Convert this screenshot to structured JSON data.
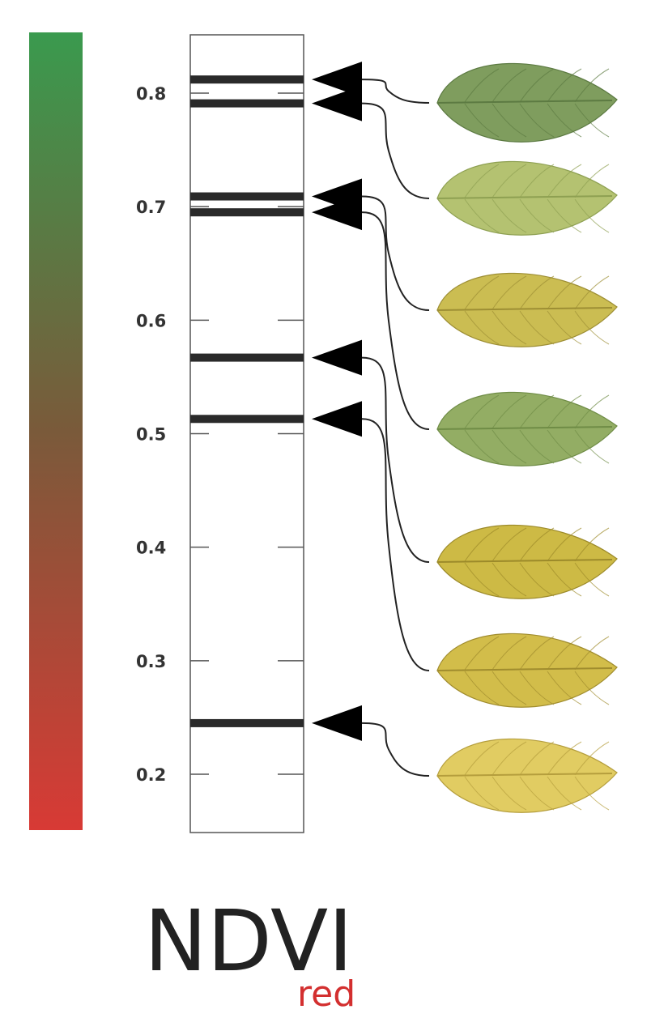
{
  "title": {
    "main": "NDVI",
    "subscript": "red",
    "subscript_color": "#d32f2f"
  },
  "colors": {
    "high": "#3a9a4e",
    "low": "#d83a35",
    "mid": "#7a5a3a"
  },
  "chart_data": {
    "type": "diagram",
    "axis": {
      "min": 0.15,
      "max": 0.85,
      "ticks": [
        0.8,
        0.7,
        0.6,
        0.5,
        0.4,
        0.3,
        0.2
      ],
      "tick_labels": [
        "0.8",
        "0.7",
        "0.6",
        "0.5",
        "0.4",
        "0.3",
        "0.2"
      ]
    },
    "markers": [
      {
        "value": 0.812,
        "leaf_index": 0
      },
      {
        "value": 0.791,
        "leaf_index": 1
      },
      {
        "value": 0.709,
        "leaf_index": 2
      },
      {
        "value": 0.695,
        "leaf_index": 3
      },
      {
        "value": 0.567,
        "leaf_index": 4
      },
      {
        "value": 0.513,
        "leaf_index": 5
      },
      {
        "value": 0.245,
        "leaf_index": 6
      }
    ],
    "leaves": [
      {
        "color": "#7f9d5e",
        "vein": "#5c7a42"
      },
      {
        "color": "#b4c271",
        "vein": "#8ea052"
      },
      {
        "color": "#cbbd52",
        "vein": "#9d8e34"
      },
      {
        "color": "#93ad64",
        "vein": "#6f8c46"
      },
      {
        "color": "#cdba45",
        "vein": "#9c8a2a"
      },
      {
        "color": "#d2bd4a",
        "vein": "#a08c2e"
      },
      {
        "color": "#e1cc62",
        "vein": "#b59e3d"
      }
    ]
  }
}
